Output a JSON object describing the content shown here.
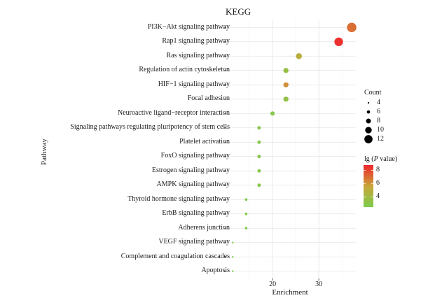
{
  "chart_data": {
    "type": "scatter",
    "title": "KEGG",
    "xlabel": "Enrichment",
    "ylabel": "Pathway",
    "xlim": [
      10,
      38
    ],
    "xticks": [
      20,
      30
    ],
    "pathways": [
      "PI3K−Akt signaling pathway",
      "Rap1 signaling pathway",
      "Ras signaling pathway",
      "Regulation of actin cytoskeleton",
      "HIF−1 signaling pathway",
      "Focal adhesion",
      "Neuroactive ligand−receptor interaction",
      "Signaling pathways regulating pluripotency of stem cells",
      "Platelet activation",
      "FoxO signaling pathway",
      "Estrogen signaling pathway",
      "AMPK signaling pathway",
      "Thyroid hormone signaling pathway",
      "ErbB signaling pathway",
      "Adherens junction",
      "VEGF signaling pathway",
      "Complement and coagulation cascades",
      "Apoptosis"
    ],
    "enrichment": [
      37.1,
      34.3,
      25.7,
      22.9,
      22.9,
      22.9,
      20.0,
      17.1,
      17.1,
      17.1,
      17.1,
      17.1,
      14.3,
      14.3,
      14.3,
      11.4,
      11.4,
      11.4
    ],
    "count": [
      13,
      12,
      9,
      8,
      8,
      8,
      7,
      6,
      6,
      6,
      6,
      6,
      5,
      5,
      5,
      4,
      4,
      4
    ],
    "lg_p_value": [
      7.0,
      8.5,
      5.0,
      3.6,
      6.2,
      3.4,
      2.9,
      2.9,
      2.9,
      2.9,
      2.9,
      2.9,
      2.6,
      2.6,
      2.6,
      2.5,
      2.5,
      2.5
    ],
    "size_legend": {
      "title": "Count",
      "values": [
        4,
        6,
        8,
        10,
        12
      ],
      "labels": [
        "4",
        "6",
        "8",
        "10",
        "12"
      ]
    },
    "color_legend": {
      "title_prefix": "lg (",
      "title_italic": "P",
      "title_suffix": " value)",
      "range": [
        2.5,
        8.8
      ],
      "ticks": [
        4,
        6,
        8
      ],
      "tick_labels": [
        "4",
        "6",
        "8"
      ],
      "low_color": "#7ccc4b",
      "mid_color": "#c9a63a",
      "high_color": "#f0242c"
    }
  }
}
